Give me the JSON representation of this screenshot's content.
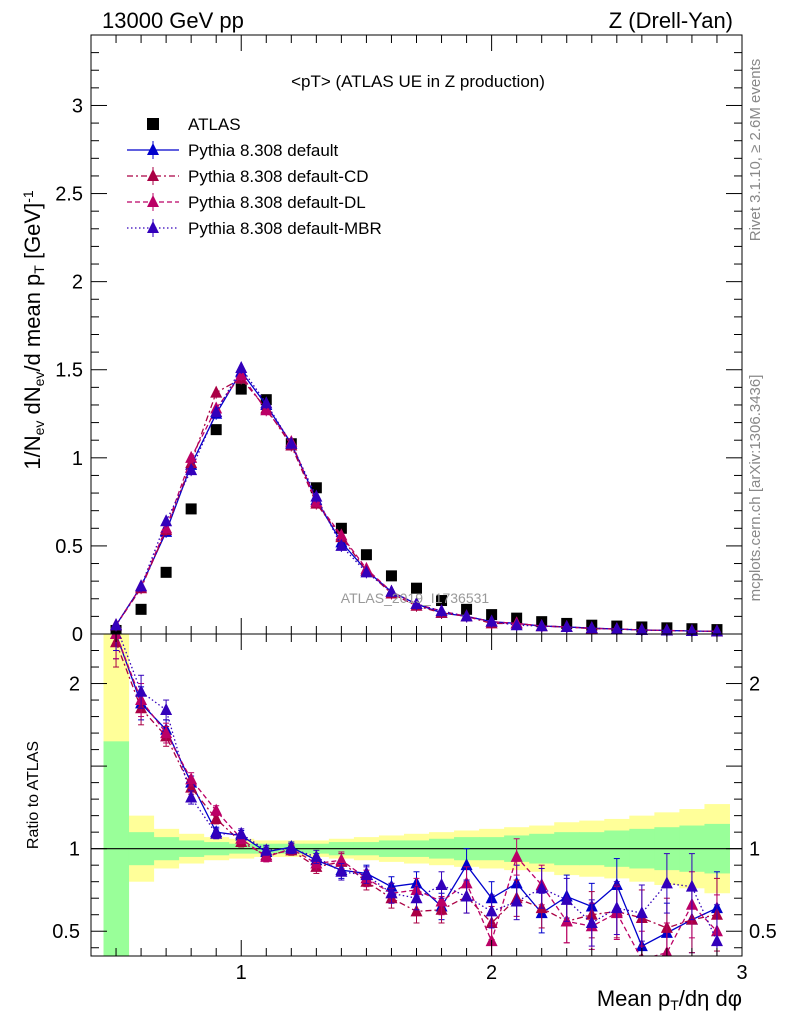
{
  "header": {
    "left": "13000 GeV pp",
    "right": "Z (Drell-Yan)"
  },
  "side_labels": {
    "rivet": "Rivet 3.1.10, ≥ 2.6M events",
    "mcplots": "mcplots.cern.ch [arXiv:1306.3436]"
  },
  "watermark": "ATLAS_2019_I1736531",
  "colors": {
    "atlas": "#000000",
    "default": "#0000cc",
    "cd": "#aa0044",
    "dl": "#bb0066",
    "mbr": "#3300bb",
    "band_inner": "#99ff99",
    "band_outer": "#ffff99"
  },
  "chart_data": [
    {
      "type": "scatter",
      "title": "<pT> (ATLAS UE in Z production)",
      "xlabel": "Mean p_T/dη dφ",
      "ylabel": "1/N_ev dN_ev/d mean p_T [GeV]^-1",
      "xlim": [
        0.4,
        3.0
      ],
      "ylim": [
        0,
        3.4
      ],
      "yticks": [
        "0",
        "0.5",
        "1",
        "1.5",
        "2",
        "2.5",
        "3"
      ],
      "legend_position": "top-left",
      "x": [
        0.5,
        0.6,
        0.7,
        0.8,
        0.9,
        1.0,
        1.1,
        1.2,
        1.3,
        1.4,
        1.5,
        1.6,
        1.7,
        1.8,
        1.9,
        2.0,
        2.1,
        2.2,
        2.3,
        2.4,
        2.5,
        2.6,
        2.7,
        2.8,
        2.9
      ],
      "series": [
        {
          "name": "ATLAS",
          "marker": "square",
          "values": [
            0.02,
            0.14,
            0.35,
            0.71,
            1.16,
            1.39,
            1.33,
            1.08,
            0.83,
            0.6,
            0.45,
            0.33,
            0.26,
            0.19,
            0.14,
            0.11,
            0.09,
            0.07,
            0.06,
            0.05,
            0.045,
            0.04,
            0.035,
            0.03,
            0.025
          ]
        },
        {
          "name": "Pythia 8.308 default",
          "marker": "triangle",
          "line": "solid",
          "values": [
            0.05,
            0.27,
            0.58,
            0.96,
            1.25,
            1.49,
            1.3,
            1.08,
            0.76,
            0.52,
            0.36,
            0.24,
            0.17,
            0.12,
            0.1,
            0.07,
            0.06,
            0.045,
            0.04,
            0.033,
            0.028,
            0.023,
            0.02,
            0.017,
            0.015
          ]
        },
        {
          "name": "Pythia 8.308 default-CD",
          "marker": "triangle",
          "line": "dashdot",
          "values": [
            0.05,
            0.26,
            0.59,
            0.97,
            1.37,
            1.45,
            1.28,
            1.07,
            0.74,
            0.55,
            0.36,
            0.23,
            0.16,
            0.12,
            0.1,
            0.06,
            0.06,
            0.045,
            0.04,
            0.03,
            0.028,
            0.023,
            0.02,
            0.017,
            0.015
          ]
        },
        {
          "name": "Pythia 8.308 default-DL",
          "marker": "triangle",
          "line": "dashed",
          "values": [
            0.05,
            0.27,
            0.6,
            1.0,
            1.28,
            1.47,
            1.27,
            1.09,
            0.75,
            0.56,
            0.37,
            0.24,
            0.17,
            0.13,
            0.1,
            0.07,
            0.06,
            0.045,
            0.04,
            0.033,
            0.028,
            0.023,
            0.02,
            0.017,
            0.015
          ]
        },
        {
          "name": "Pythia 8.308 default-MBR",
          "marker": "triangle",
          "line": "dotted",
          "values": [
            0.05,
            0.27,
            0.64,
            0.93,
            1.26,
            1.51,
            1.31,
            1.08,
            0.78,
            0.5,
            0.35,
            0.24,
            0.17,
            0.13,
            0.1,
            0.07,
            0.05,
            0.045,
            0.04,
            0.033,
            0.028,
            0.023,
            0.02,
            0.017,
            0.015
          ]
        }
      ]
    },
    {
      "type": "scatter",
      "title": "",
      "xlabel": "Mean p_T/dη dφ",
      "ylabel": "Ratio to ATLAS",
      "xlim": [
        0.4,
        3.0
      ],
      "ylim": [
        0.35,
        2.3
      ],
      "yticks": [
        "0.5",
        "1",
        "2"
      ],
      "xticks": [
        "1",
        "2",
        "3"
      ],
      "reference_line": 1,
      "x": [
        0.5,
        0.6,
        0.7,
        0.8,
        0.9,
        1.0,
        1.1,
        1.2,
        1.3,
        1.4,
        1.5,
        1.6,
        1.7,
        1.8,
        1.9,
        2.0,
        2.1,
        2.2,
        2.3,
        2.4,
        2.5,
        2.6,
        2.7,
        2.8,
        2.9
      ],
      "band_inner_halfwidth": [
        0.65,
        0.1,
        0.07,
        0.05,
        0.04,
        0.03,
        0.03,
        0.03,
        0.03,
        0.04,
        0.04,
        0.05,
        0.05,
        0.06,
        0.07,
        0.07,
        0.08,
        0.09,
        0.1,
        0.1,
        0.11,
        0.12,
        0.13,
        0.14,
        0.15
      ],
      "band_outer_halfwidth": [
        1.3,
        0.2,
        0.12,
        0.09,
        0.07,
        0.06,
        0.05,
        0.05,
        0.05,
        0.06,
        0.07,
        0.08,
        0.09,
        0.1,
        0.11,
        0.12,
        0.13,
        0.14,
        0.16,
        0.17,
        0.18,
        0.2,
        0.22,
        0.24,
        0.27
      ],
      "series": [
        {
          "name": "Pythia 8.308 default",
          "values": [
            2.3,
            1.88,
            1.72,
            1.4,
            1.1,
            1.08,
            0.98,
            1.01,
            0.93,
            0.87,
            0.85,
            0.77,
            0.79,
            0.65,
            0.9,
            0.7,
            0.79,
            0.61,
            0.71,
            0.65,
            0.78,
            0.41,
            0.49,
            0.57,
            0.64
          ],
          "errors": [
            0.15,
            0.1,
            0.06,
            0.04,
            0.03,
            0.03,
            0.03,
            0.03,
            0.04,
            0.05,
            0.05,
            0.06,
            0.07,
            0.08,
            0.1,
            0.1,
            0.11,
            0.12,
            0.13,
            0.14,
            0.16,
            0.17,
            0.18,
            0.2,
            0.22
          ]
        },
        {
          "name": "Pythia 8.308 default-CD",
          "values": [
            2.25,
            1.85,
            1.68,
            1.37,
            1.18,
            1.04,
            0.96,
            0.99,
            0.89,
            0.92,
            0.8,
            0.7,
            0.62,
            0.63,
            0.71,
            0.55,
            0.7,
            0.64,
            0.56,
            0.6,
            0.62,
            0.58,
            0.52,
            0.57,
            0.6
          ],
          "errors": [
            0.15,
            0.1,
            0.06,
            0.04,
            0.03,
            0.03,
            0.03,
            0.03,
            0.04,
            0.05,
            0.05,
            0.06,
            0.07,
            0.08,
            0.1,
            0.1,
            0.11,
            0.12,
            0.13,
            0.14,
            0.16,
            0.17,
            0.18,
            0.2,
            0.22
          ]
        },
        {
          "name": "Pythia 8.308 default-DL",
          "values": [
            2.3,
            1.9,
            1.7,
            1.42,
            1.23,
            1.06,
            0.95,
            1.0,
            0.91,
            0.93,
            0.82,
            0.73,
            0.75,
            0.68,
            0.79,
            0.44,
            0.95,
            0.78,
            0.56,
            0.53,
            0.61,
            0.33,
            0.37,
            0.66,
            0.5
          ],
          "errors": [
            0.15,
            0.1,
            0.06,
            0.04,
            0.03,
            0.03,
            0.03,
            0.03,
            0.04,
            0.05,
            0.05,
            0.06,
            0.07,
            0.08,
            0.1,
            0.1,
            0.11,
            0.12,
            0.13,
            0.14,
            0.16,
            0.17,
            0.18,
            0.2,
            0.22
          ]
        },
        {
          "name": "Pythia 8.308 default-MBR",
          "values": [
            2.35,
            1.95,
            1.84,
            1.31,
            1.09,
            1.09,
            0.99,
            1.0,
            0.95,
            0.86,
            0.84,
            0.73,
            0.7,
            0.78,
            0.71,
            0.62,
            0.68,
            0.76,
            0.69,
            0.55,
            0.64,
            0.61,
            0.79,
            0.77,
            0.44
          ],
          "errors": [
            0.15,
            0.1,
            0.06,
            0.04,
            0.03,
            0.03,
            0.03,
            0.03,
            0.04,
            0.05,
            0.05,
            0.06,
            0.07,
            0.08,
            0.1,
            0.1,
            0.11,
            0.12,
            0.13,
            0.14,
            0.16,
            0.17,
            0.18,
            0.2,
            0.22
          ]
        }
      ]
    }
  ]
}
